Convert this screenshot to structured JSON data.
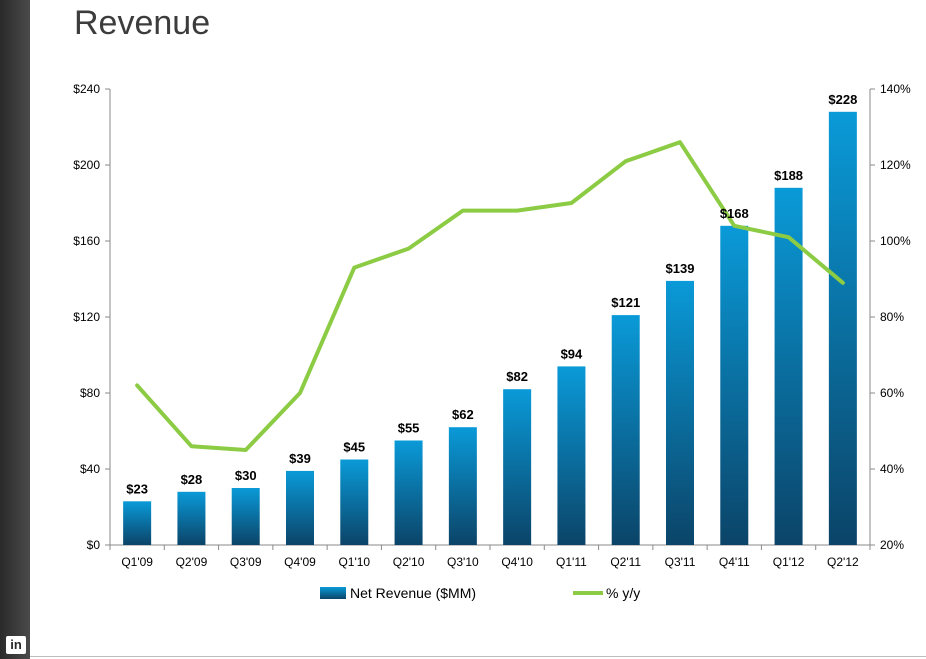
{
  "page": {
    "title": "Revenue"
  },
  "branding": {
    "logo_text": "in"
  },
  "colors": {
    "bar_top": "#0a9ad8",
    "bar_bottom": "#0b4468",
    "line": "#8ccb44",
    "axis": "#8a8a8a",
    "text": "#000000"
  },
  "chart_data": {
    "type": "bar",
    "title": "Revenue",
    "categories": [
      "Q1'09",
      "Q2'09",
      "Q3'09",
      "Q4'09",
      "Q1'10",
      "Q2'10",
      "Q3'10",
      "Q4'10",
      "Q1'11",
      "Q2'11",
      "Q3'11",
      "Q4'11",
      "Q1'12",
      "Q2'12"
    ],
    "series": [
      {
        "name": "Net Revenue ($MM)",
        "type": "bar",
        "axis": "left",
        "values": [
          23,
          28,
          30,
          39,
          45,
          55,
          62,
          82,
          94,
          121,
          139,
          168,
          188,
          228
        ],
        "labels": [
          "$23",
          "$28",
          "$30",
          "$39",
          "$45",
          "$55",
          "$62",
          "$82",
          "$94",
          "$121",
          "$139",
          "$168",
          "$188",
          "$228"
        ]
      },
      {
        "name": "% y/y",
        "type": "line",
        "axis": "right",
        "values": [
          62,
          46,
          45,
          60,
          93,
          98,
          108,
          108,
          110,
          121,
          126,
          104,
          101,
          89
        ]
      }
    ],
    "y_left": {
      "min": 0,
      "max": 240,
      "ticks": [
        0,
        40,
        80,
        120,
        160,
        200,
        240
      ],
      "tick_labels": [
        "$0",
        "$40",
        "$80",
        "$120",
        "$160",
        "$200",
        "$240"
      ]
    },
    "y_right": {
      "min": 20,
      "max": 140,
      "ticks": [
        20,
        40,
        60,
        80,
        100,
        120,
        140
      ],
      "tick_labels": [
        "20%",
        "40%",
        "60%",
        "80%",
        "100%",
        "120%",
        "140%"
      ]
    },
    "legend": {
      "position": "bottom",
      "entries": [
        "Net Revenue ($MM)",
        "% y/y"
      ]
    },
    "grid": false
  }
}
